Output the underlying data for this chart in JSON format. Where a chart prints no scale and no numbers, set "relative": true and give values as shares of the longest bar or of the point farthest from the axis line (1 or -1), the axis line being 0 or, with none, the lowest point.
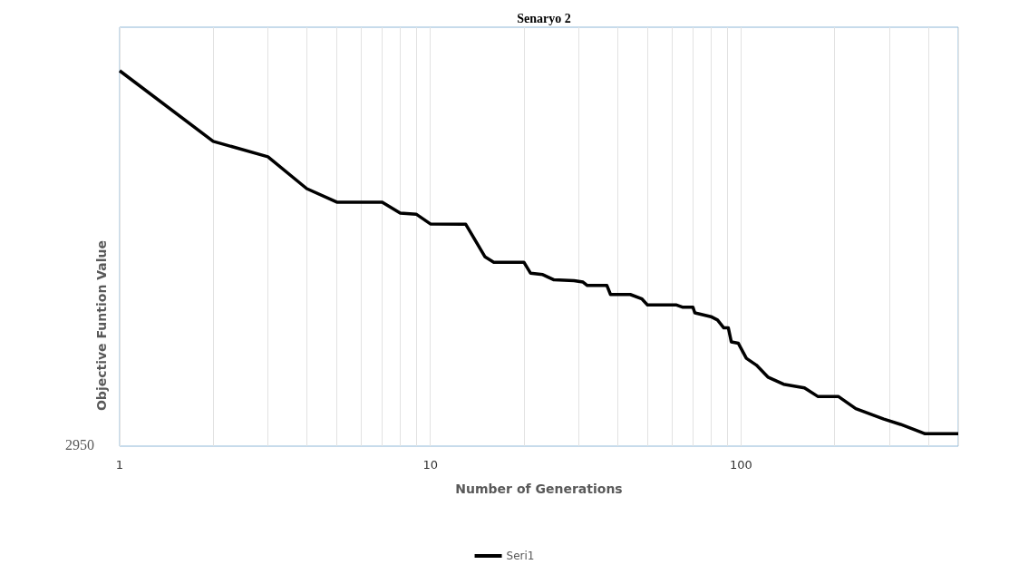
{
  "chart_data": {
    "type": "line",
    "title": "Senaryo 2",
    "xlabel": "Number of Generations",
    "ylabel": "Objective Funtion Value",
    "annotations": [
      "2950"
    ],
    "relative": true,
    "log": "x",
    "xlim": [
      1,
      500
    ],
    "xticks": [
      1,
      10,
      100
    ],
    "grid": "x",
    "legend": "bottom",
    "marker": "none",
    "line_style": "solid",
    "x": [
      1,
      2,
      3,
      4,
      5,
      7,
      8,
      9,
      10,
      13,
      15,
      16,
      20,
      21,
      23,
      25,
      29,
      31,
      32,
      37,
      38,
      44,
      48,
      50,
      62,
      65,
      70,
      71,
      80,
      84,
      88,
      91,
      93,
      98,
      104,
      112,
      122,
      137,
      160,
      177,
      206,
      234,
      288,
      326,
      391,
      500
    ],
    "series": [
      {
        "name": "Seri1",
        "color": "#000000",
        "values": [
          1,
          0.812,
          0.771,
          0.686,
          0.65,
          0.65,
          0.621,
          0.618,
          0.592,
          0.591,
          0.504,
          0.49,
          0.49,
          0.461,
          0.457,
          0.443,
          0.441,
          0.437,
          0.428,
          0.428,
          0.404,
          0.404,
          0.392,
          0.376,
          0.376,
          0.37,
          0.37,
          0.355,
          0.345,
          0.336,
          0.315,
          0.315,
          0.278,
          0.274,
          0.234,
          0.216,
          0.184,
          0.165,
          0.155,
          0.132,
          0.132,
          0.1,
          0.072,
          0.058,
          0.033,
          0.033
        ]
      }
    ]
  }
}
